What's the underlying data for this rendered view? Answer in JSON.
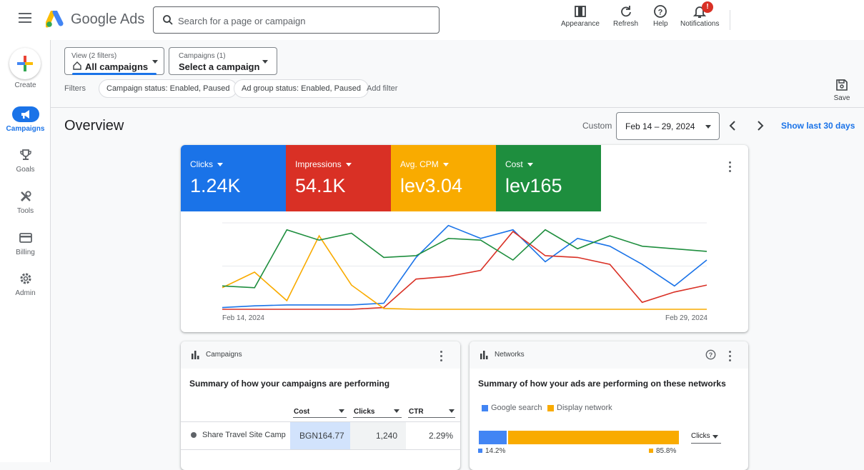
{
  "header": {
    "app_name": "Google Ads",
    "search_placeholder": "Search for a page or campaign",
    "actions": [
      {
        "label": "Appearance",
        "icon": "appearance-icon"
      },
      {
        "label": "Refresh",
        "icon": "refresh-icon"
      },
      {
        "label": "Help",
        "icon": "help-icon"
      },
      {
        "label": "Notifications",
        "icon": "bell-icon"
      }
    ],
    "notification_badge": "!"
  },
  "sidebar": {
    "items": [
      {
        "label": "Create",
        "icon": "plus-icon"
      },
      {
        "label": "Campaigns",
        "icon": "megaphone-icon",
        "active": true
      },
      {
        "label": "Goals",
        "icon": "trophy-icon"
      },
      {
        "label": "Tools",
        "icon": "tools-icon"
      },
      {
        "label": "Billing",
        "icon": "credit-card-icon"
      },
      {
        "label": "Admin",
        "icon": "gear-icon"
      }
    ]
  },
  "filters": {
    "view_small": "View (2 filters)",
    "view_value": "All campaigns",
    "campaigns_small": "Campaigns (1)",
    "campaigns_value": "Select a campaign",
    "label": "Filters",
    "chips": [
      "Campaign status: Enabled, Paused",
      "Ad group status: Enabled, Paused"
    ],
    "add_filter": "Add filter",
    "save": "Save"
  },
  "overview": {
    "title": "Overview",
    "custom_label": "Custom",
    "date_range": "Feb 14 – 29, 2024",
    "show_last": "Show last 30 days"
  },
  "metrics": [
    {
      "label": "Clicks",
      "value": "1.24K",
      "color": "#1a73e8"
    },
    {
      "label": "Impressions",
      "value": "54.1K",
      "color": "#d93025"
    },
    {
      "label": "Avg. CPM",
      "value": "lev3.04",
      "color": "#f9ab00"
    },
    {
      "label": "Cost",
      "value": "lev165",
      "color": "#1e8e3e"
    }
  ],
  "chart_data": {
    "type": "line",
    "x_start_label": "Feb 14, 2024",
    "x_end_label": "Feb 29, 2024",
    "x": [
      "Feb 14",
      "Feb 15",
      "Feb 16",
      "Feb 17",
      "Feb 18",
      "Feb 19",
      "Feb 20",
      "Feb 21",
      "Feb 22",
      "Feb 23",
      "Feb 24",
      "Feb 25",
      "Feb 26",
      "Feb 27",
      "Feb 28",
      "Feb 29"
    ],
    "ylim": [
      0,
      1
    ],
    "grid": true,
    "series": [
      {
        "color": "#1a73e8",
        "values": [
          0.02,
          0.04,
          0.05,
          0.05,
          0.05,
          0.07,
          0.6,
          0.97,
          0.82,
          0.92,
          0.55,
          0.82,
          0.73,
          0.52,
          0.27,
          0.57
        ]
      },
      {
        "color": "#d93025",
        "values": [
          0.0,
          0.0,
          0.0,
          0.0,
          0.0,
          0.02,
          0.35,
          0.38,
          0.45,
          0.9,
          0.62,
          0.6,
          0.52,
          0.08,
          0.2,
          0.28
        ]
      },
      {
        "color": "#f9ab00",
        "values": [
          0.25,
          0.43,
          0.1,
          0.85,
          0.28,
          0.01,
          0.0,
          0.0,
          0.0,
          0.0,
          0.0,
          0.0,
          0.0,
          0.0,
          0.0,
          0.0
        ]
      },
      {
        "color": "#1e8e3e",
        "values": [
          0.27,
          0.25,
          0.92,
          0.8,
          0.88,
          0.6,
          0.62,
          0.82,
          0.8,
          0.57,
          0.92,
          0.7,
          0.85,
          0.73,
          0.7,
          0.67
        ]
      }
    ]
  },
  "campaigns_card": {
    "title": "Campaigns",
    "subtitle": "Summary of how your campaigns are performing",
    "columns": [
      "Cost",
      "Clicks",
      "CTR"
    ],
    "rows": [
      {
        "name": "Share Travel Site Camp",
        "cost": "BGN164.77",
        "clicks": "1,240",
        "ctr": "2.29%"
      }
    ]
  },
  "networks_card": {
    "title": "Networks",
    "subtitle": "Summary of how your ads are performing on these networks",
    "legend": [
      {
        "label": "Google search",
        "color": "#4285f4"
      },
      {
        "label": "Display network",
        "color": "#f9ab00"
      }
    ],
    "metric_select": "Clicks",
    "google_pct": "14.2%",
    "display_pct": "85.8%",
    "google_share": 0.142,
    "display_share": 0.858
  }
}
